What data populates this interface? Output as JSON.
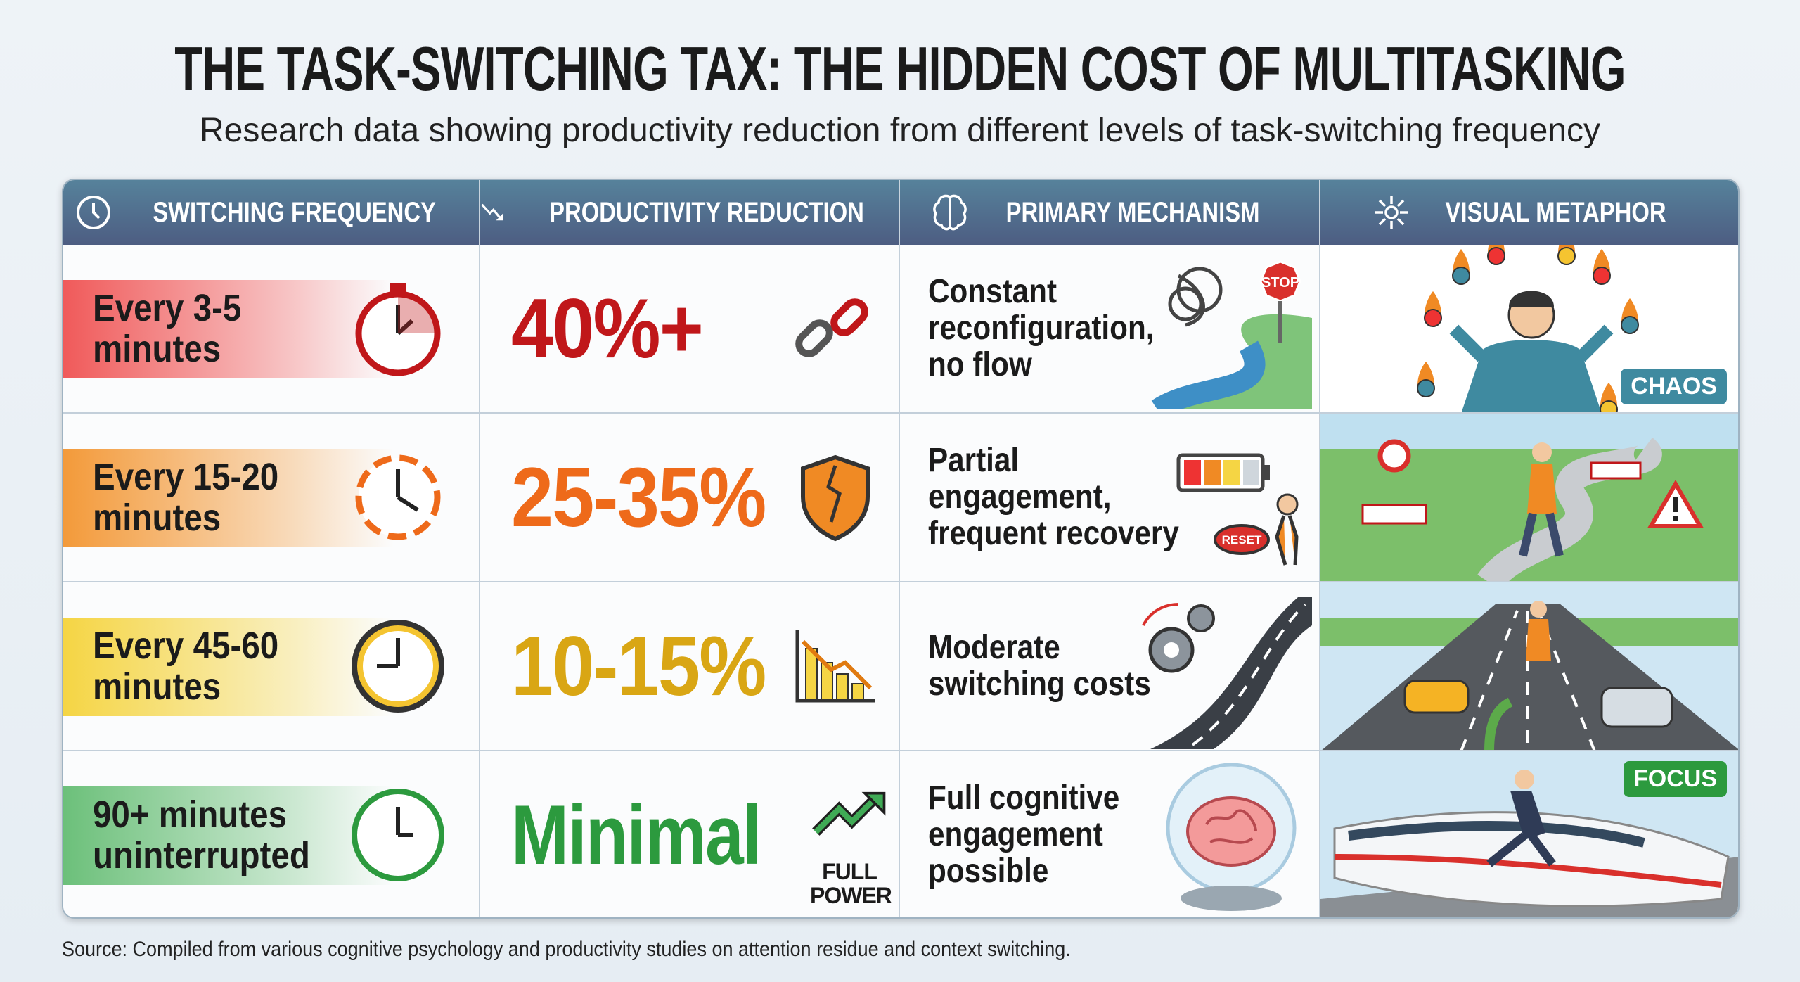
{
  "title": "THE TASK-SWITCHING TAX: THE HIDDEN COST OF MULTITASKING",
  "subtitle": "Research data showing productivity reduction from different levels of task-switching frequency",
  "headers": [
    {
      "label": "SWITCHING FREQUENCY",
      "icon": "clock-icon"
    },
    {
      "label": "PRODUCTIVITY REDUCTION",
      "icon": "trend-down-icon"
    },
    {
      "label": "PRIMARY MECHANISM",
      "icon": "brain-icon"
    },
    {
      "label": "VISUAL METAPHOR",
      "icon": "network-icon"
    }
  ],
  "rows": [
    {
      "frequency": "Every 3-5 minutes",
      "reduction": "40%+",
      "mechanism": "Constant reconfiguration, no flow",
      "mechanism_sign": "STOP",
      "metaphor_tag": "CHAOS",
      "color": "#c0171a",
      "band": "#f05a5a",
      "icons": [
        "stopwatch-icon",
        "broken-chain-icon",
        "tangled-river-icon",
        "juggler-icon"
      ]
    },
    {
      "frequency": "Every 15-20 minutes",
      "reduction": "25-35%",
      "mechanism": "Partial engagement, frequent recovery",
      "mechanism_sign": "RESET",
      "metaphor_tag": "",
      "color": "#ee6a1a",
      "band": "#f39a3a",
      "icons": [
        "broken-clock-icon",
        "cracked-shield-icon",
        "low-battery-icon",
        "roadblock-icon"
      ]
    },
    {
      "frequency": "Every 45-60 minutes",
      "reduction": "10-15%",
      "mechanism": "Moderate switching costs",
      "mechanism_sign": "",
      "metaphor_tag": "",
      "color": "#d9a614",
      "band": "#f5d544",
      "icons": [
        "clock-icon",
        "declining-bars-icon",
        "gears-road-icon",
        "highway-icon"
      ]
    },
    {
      "frequency": "90+ minutes uninterrupted",
      "reduction": "Minimal",
      "mechanism": "Full cognitive engagement possible",
      "mechanism_sign": "",
      "metaphor_tag": "FOCUS",
      "color": "#2c9a3e",
      "band": "#6cc07a",
      "icons": [
        "clock-icon",
        "rising-arrow-icon",
        "brain-globe-icon",
        "bullet-train-icon"
      ],
      "reduction_badge": "FULL POWER"
    }
  ],
  "source": "Source: Compiled from various cognitive psychology and productivity studies on attention residue and context switching."
}
